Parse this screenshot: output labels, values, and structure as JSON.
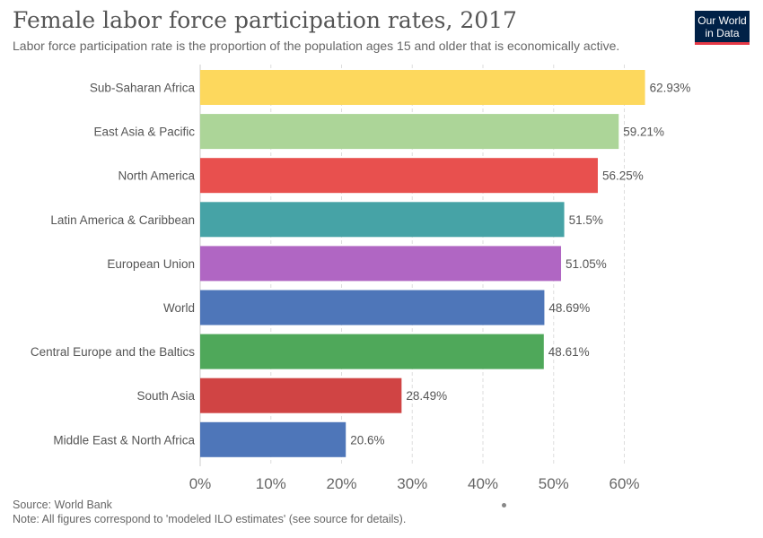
{
  "header": {
    "title": "Female labor force participation rates, 2017",
    "subtitle": "Labor force participation rate is the proportion of the population ages 15 and older that is economically active."
  },
  "logo": {
    "line1": "Our World",
    "line2": "in Data"
  },
  "footer": {
    "source": "Source: World Bank",
    "note": "Note: All figures correspond to 'modeled ILO estimates' (see source for details)."
  },
  "chart_data": {
    "type": "bar",
    "orientation": "horizontal",
    "title": "Female labor force participation rates, 2017",
    "xlim": [
      0,
      65
    ],
    "ticks": [
      0,
      10,
      20,
      30,
      40,
      50,
      60
    ],
    "tick_labels": [
      "0%",
      "10%",
      "20%",
      "30%",
      "40%",
      "50%",
      "60%"
    ],
    "grid": true,
    "categories": [
      "Sub-Saharan Africa",
      "East Asia & Pacific",
      "North America",
      "Latin America & Caribbean",
      "European Union",
      "World",
      "Central Europe and the Baltics",
      "South Asia",
      "Middle East & North Africa"
    ],
    "values": [
      62.93,
      59.21,
      56.25,
      51.5,
      51.05,
      48.69,
      48.61,
      28.49,
      20.6
    ],
    "value_labels": [
      "62.93%",
      "59.21%",
      "56.25%",
      "51.5%",
      "51.05%",
      "48.69%",
      "48.61%",
      "28.49%",
      "20.6%"
    ],
    "colors": [
      "#fdd85d",
      "#acd598",
      "#e8504e",
      "#46a3a6",
      "#b066c3",
      "#4e76b9",
      "#4fa85a",
      "#d04444",
      "#4e76b9"
    ]
  }
}
